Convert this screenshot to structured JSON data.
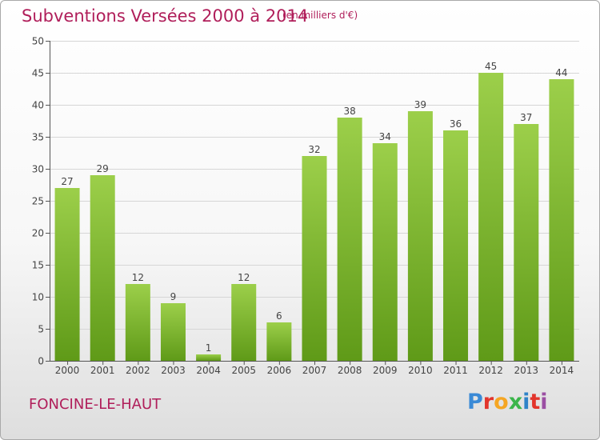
{
  "header": {
    "title": "Subventions Versées 2000 à 2014",
    "unit": "(en milliers d'€)"
  },
  "footer": {
    "commune": "FONCINE-LE-HAUT",
    "logo_text": "Proxiti"
  },
  "colors": {
    "title": "#b01e5a",
    "bar_top": "#9ccf4a",
    "bar_bottom": "#5f9a18",
    "logo": [
      "#3a8ad6",
      "#e2352c",
      "#f5a623",
      "#3bb54a",
      "#2f83c8",
      "#e2352c",
      "#9b4fa3"
    ]
  },
  "chart_data": {
    "type": "bar",
    "categories": [
      "2000",
      "2001",
      "2002",
      "2003",
      "2004",
      "2005",
      "2006",
      "2007",
      "2008",
      "2009",
      "2010",
      "2011",
      "2012",
      "2013",
      "2014"
    ],
    "values": [
      27,
      29,
      12,
      9,
      1,
      12,
      6,
      32,
      38,
      34,
      39,
      36,
      45,
      37,
      44
    ],
    "ylim": [
      0,
      50
    ],
    "yticks": [
      0,
      5,
      10,
      15,
      20,
      25,
      30,
      35,
      40,
      45,
      50
    ],
    "grid": true,
    "data_labels": true,
    "xlabel": "",
    "ylabel": ""
  }
}
